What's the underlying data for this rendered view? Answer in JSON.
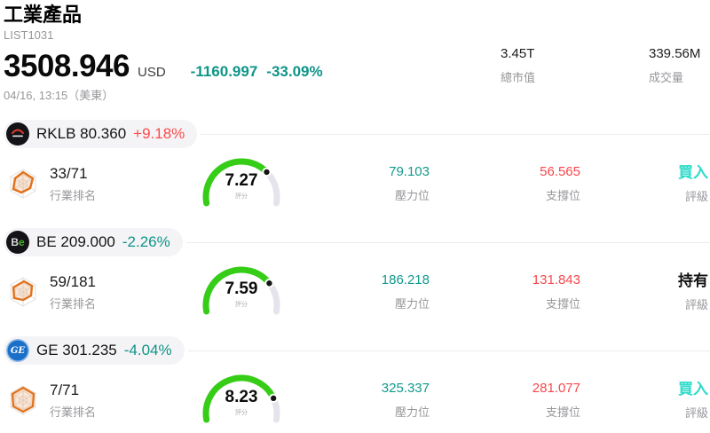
{
  "header": {
    "title": "工業產品",
    "subtitle": "LIST1031",
    "price": "3508.946",
    "currency": "USD",
    "change_value": "-1160.997",
    "change_pct": "-33.09%",
    "datetime": "04/16, 13:15（美東）",
    "stats": [
      {
        "value": "3.45T",
        "label": "總市值"
      },
      {
        "value": "339.56M",
        "label": "成交量"
      }
    ]
  },
  "labels": {
    "rank": "行業排名",
    "score": "評分",
    "pressure": "壓力位",
    "support": "支撐位",
    "rating": "評級"
  },
  "colors": {
    "up": "#fa4b4b",
    "down": "#0f9488",
    "pressure": "#12998c",
    "support": "#f8474c",
    "rating_buy": "#2edbcb",
    "rating_hold": "#111111",
    "gauge_fill": "#35cd16",
    "gauge_track": "#e4e4ec"
  },
  "stocks": [
    {
      "symbol": "RKLB",
      "price": "80.360",
      "change": "+9.18%",
      "change_dir": "up",
      "rank": "33/71",
      "score": 7.27,
      "pressure": "79.103",
      "support": "56.565",
      "rating": "買入",
      "rating_type": "buy"
    },
    {
      "symbol": "BE",
      "price": "209.000",
      "change": "-2.26%",
      "change_dir": "down",
      "rank": "59/181",
      "score": 7.59,
      "pressure": "186.218",
      "support": "131.843",
      "rating": "持有",
      "rating_type": "hold"
    },
    {
      "symbol": "GE",
      "price": "301.235",
      "change": "-4.04%",
      "change_dir": "down",
      "rank": "7/71",
      "score": 8.23,
      "pressure": "325.337",
      "support": "281.077",
      "rating": "買入",
      "rating_type": "buy"
    }
  ]
}
